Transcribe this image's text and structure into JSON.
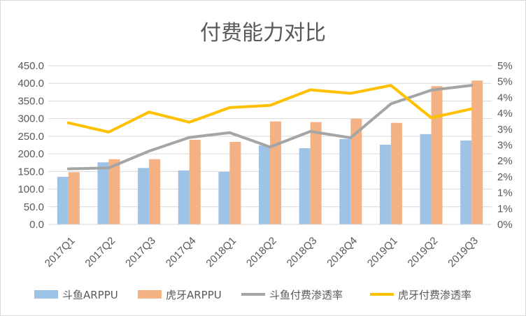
{
  "chart_data": {
    "type": "bar",
    "title": "付费能力对比",
    "categories": [
      "2017Q1",
      "2017Q2",
      "2017Q3",
      "2017Q4",
      "2018Q1",
      "2018Q2",
      "2018Q3",
      "2018Q4",
      "2019Q1",
      "2019Q2",
      "2019Q3"
    ],
    "bar_series": [
      {
        "name": "斗鱼ARPPU",
        "color": "#9DC3E6",
        "values": [
          135,
          176,
          160,
          153,
          149,
          224,
          216,
          242,
          226,
          256,
          238
        ]
      },
      {
        "name": "虎牙ARPPU",
        "color": "#F4B183",
        "values": [
          148,
          185,
          185,
          240,
          234,
          292,
          290,
          300,
          288,
          392,
          408
        ]
      }
    ],
    "line_series": [
      {
        "name": "斗鱼付费渗透率",
        "color": "#A5A5A5",
        "values": [
          0.0175,
          0.0178,
          0.0231,
          0.0274,
          0.0289,
          0.0244,
          0.0293,
          0.0273,
          0.038,
          0.0423,
          0.0438
        ]
      },
      {
        "name": "虎牙付费渗透率",
        "color": "#FFC000",
        "values": [
          0.032,
          0.0291,
          0.0354,
          0.0322,
          0.0368,
          0.0375,
          0.0424,
          0.0413,
          0.0438,
          0.0336,
          0.0364
        ]
      }
    ],
    "y_left": {
      "min": 0,
      "max": 450,
      "step": 50,
      "tick_labels": [
        "0.0",
        "50.0",
        "100.0",
        "150.0",
        "200.0",
        "250.0",
        "300.0",
        "350.0",
        "400.0",
        "450.0"
      ]
    },
    "y_right": {
      "min": 0,
      "max": 0.05,
      "step": 0.005,
      "tick_labels": [
        "0%",
        "1%",
        "1%",
        "2%",
        "2%",
        "3%",
        "3%",
        "4%",
        "4%",
        "5%",
        "5%"
      ]
    },
    "grid": "horizontal",
    "legend": "bottom"
  }
}
